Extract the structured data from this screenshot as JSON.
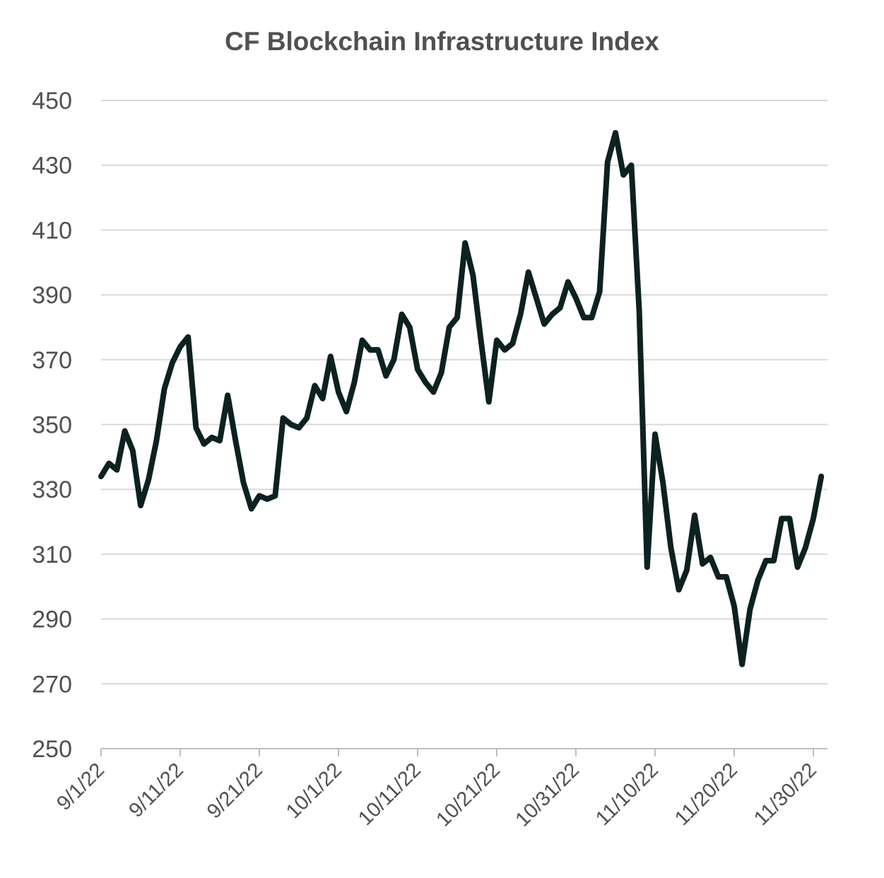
{
  "chart_data": {
    "type": "line",
    "title": "CF Blockchain Infrastructure Index",
    "xlabel": "",
    "ylabel": "",
    "ylim": [
      250,
      450
    ],
    "yticks": [
      250,
      270,
      290,
      310,
      330,
      350,
      370,
      390,
      410,
      430,
      450
    ],
    "xlim": [
      "9/1/22",
      "12/3/22"
    ],
    "xticks": [
      "9/1/22",
      "9/11/22",
      "9/21/22",
      "10/1/22",
      "10/11/22",
      "10/21/22",
      "10/31/22",
      "11/10/22",
      "11/20/22",
      "11/30/22"
    ],
    "grid": true,
    "legend": "none",
    "colors": {
      "line": "#0d2121",
      "grid": "#d9d9d9",
      "text": "#505050"
    },
    "series": [
      {
        "points": [
          [
            "9/1/22",
            334
          ],
          [
            "9/2/22",
            338
          ],
          [
            "9/3/22",
            336
          ],
          [
            "9/4/22",
            348
          ],
          [
            "9/5/22",
            342
          ],
          [
            "9/6/22",
            325
          ],
          [
            "9/7/22",
            333
          ],
          [
            "9/8/22",
            345
          ],
          [
            "9/9/22",
            361
          ],
          [
            "9/10/22",
            369
          ],
          [
            "9/11/22",
            374
          ],
          [
            "9/12/22",
            377
          ],
          [
            "9/13/22",
            349
          ],
          [
            "9/14/22",
            344
          ],
          [
            "9/15/22",
            346
          ],
          [
            "9/16/22",
            345
          ],
          [
            "9/17/22",
            359
          ],
          [
            "9/18/22",
            345
          ],
          [
            "9/19/22",
            332
          ],
          [
            "9/20/22",
            324
          ],
          [
            "9/21/22",
            328
          ],
          [
            "9/22/22",
            327
          ],
          [
            "9/23/22",
            328
          ],
          [
            "9/24/22",
            352
          ],
          [
            "9/25/22",
            350
          ],
          [
            "9/26/22",
            349
          ],
          [
            "9/27/22",
            352
          ],
          [
            "9/28/22",
            362
          ],
          [
            "9/29/22",
            358
          ],
          [
            "9/30/22",
            371
          ],
          [
            "10/1/22",
            360
          ],
          [
            "10/2/22",
            354
          ],
          [
            "10/3/22",
            363
          ],
          [
            "10/4/22",
            376
          ],
          [
            "10/5/22",
            373
          ],
          [
            "10/6/22",
            373
          ],
          [
            "10/7/22",
            365
          ],
          [
            "10/8/22",
            370
          ],
          [
            "10/9/22",
            384
          ],
          [
            "10/10/22",
            380
          ],
          [
            "10/11/22",
            367
          ],
          [
            "10/12/22",
            363
          ],
          [
            "10/13/22",
            360
          ],
          [
            "10/14/22",
            366
          ],
          [
            "10/15/22",
            380
          ],
          [
            "10/16/22",
            383
          ],
          [
            "10/17/22",
            406
          ],
          [
            "10/18/22",
            396
          ],
          [
            "10/19/22",
            376
          ],
          [
            "10/20/22",
            357
          ],
          [
            "10/21/22",
            376
          ],
          [
            "10/22/22",
            373
          ],
          [
            "10/23/22",
            375
          ],
          [
            "10/24/22",
            384
          ],
          [
            "10/25/22",
            397
          ],
          [
            "10/26/22",
            389
          ],
          [
            "10/27/22",
            381
          ],
          [
            "10/28/22",
            384
          ],
          [
            "10/29/22",
            386
          ],
          [
            "10/30/22",
            394
          ],
          [
            "10/31/22",
            389
          ],
          [
            "11/1/22",
            383
          ],
          [
            "11/2/22",
            383
          ],
          [
            "11/3/22",
            391
          ],
          [
            "11/4/22",
            431
          ],
          [
            "11/5/22",
            440
          ],
          [
            "11/6/22",
            427
          ],
          [
            "11/7/22",
            430
          ],
          [
            "11/8/22",
            385
          ],
          [
            "11/9/22",
            306
          ],
          [
            "11/10/22",
            347
          ],
          [
            "11/11/22",
            332
          ],
          [
            "11/12/22",
            312
          ],
          [
            "11/13/22",
            299
          ],
          [
            "11/14/22",
            305
          ],
          [
            "11/15/22",
            322
          ],
          [
            "11/16/22",
            307
          ],
          [
            "11/17/22",
            309
          ],
          [
            "11/18/22",
            303
          ],
          [
            "11/19/22",
            303
          ],
          [
            "11/20/22",
            294
          ],
          [
            "11/21/22",
            276
          ],
          [
            "11/22/22",
            293
          ],
          [
            "11/23/22",
            302
          ],
          [
            "11/24/22",
            308
          ],
          [
            "11/25/22",
            308
          ],
          [
            "11/26/22",
            321
          ],
          [
            "11/27/22",
            321
          ],
          [
            "11/28/22",
            306
          ],
          [
            "11/29/22",
            312
          ],
          [
            "11/30/22",
            321
          ],
          [
            "12/1/22",
            334
          ]
        ]
      }
    ]
  }
}
